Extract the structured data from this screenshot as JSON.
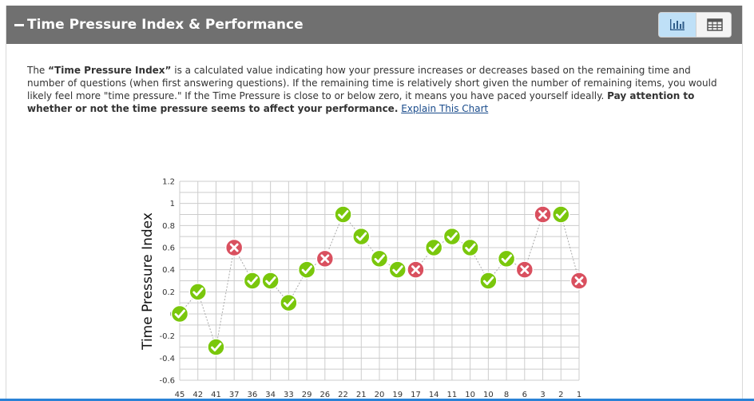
{
  "panel": {
    "title": "Time Pressure Index & Performance",
    "toggle": {
      "chart_icon": "bar-chart-icon",
      "table_icon": "table-grid-icon"
    }
  },
  "description": {
    "intro": "The ",
    "term": "“Time Pressure Index”",
    "body": " is a calculated value indicating how your pressure increases or decreases based on the remaining time and number of questions (when first answering questions). If the remaining time is relatively short given the number of remaining items, you would likely feel more \"time pressure.\" If the Time Pressure is close to or below zero, it means you have paced yourself ideally. ",
    "emphasis": "Pay attention to whether or not the time pressure seems to affect your performance.",
    "link_text": "Explain This Chart"
  },
  "colors": {
    "correct": "#7ac70c",
    "incorrect": "#d9505f",
    "header": "#707070",
    "grid": "#cccccc"
  },
  "chart_data": {
    "type": "scatter",
    "ylabel": "Time Pressure Index",
    "xlabel": "",
    "ylim": [
      -0.6,
      1.2
    ],
    "yticks": [
      1.2,
      1,
      0.8,
      0.6,
      0.4,
      0.2,
      0,
      -0.2,
      -0.4,
      -0.6
    ],
    "ytick_labels": [
      "1.2",
      "1",
      "0.8",
      "0.6",
      "0.4",
      "0.2",
      "0",
      "-0.2",
      "-0.4",
      "-0.6"
    ],
    "grid": true,
    "markers": {
      "correct": "check-icon",
      "incorrect": "x-icon"
    },
    "categories": [
      "45",
      "42",
      "41",
      "37",
      "36",
      "34",
      "33",
      "29",
      "26",
      "22",
      "21",
      "20",
      "19",
      "17",
      "14",
      "11",
      "10",
      "10",
      "8",
      "6",
      "3",
      "2",
      "1"
    ],
    "values": [
      0,
      0.2,
      -0.3,
      0.6,
      0.3,
      0.3,
      0.1,
      0.4,
      0.5,
      0.9,
      0.7,
      0.5,
      0.4,
      0.4,
      0.6,
      0.7,
      0.6,
      0.3,
      0.5,
      0.4,
      0.9,
      0.9,
      0.3
    ],
    "results": [
      "correct",
      "correct",
      "correct",
      "incorrect",
      "correct",
      "correct",
      "correct",
      "correct",
      "incorrect",
      "correct",
      "correct",
      "correct",
      "correct",
      "incorrect",
      "correct",
      "correct",
      "correct",
      "correct",
      "correct",
      "incorrect",
      "incorrect",
      "correct",
      "incorrect"
    ]
  }
}
